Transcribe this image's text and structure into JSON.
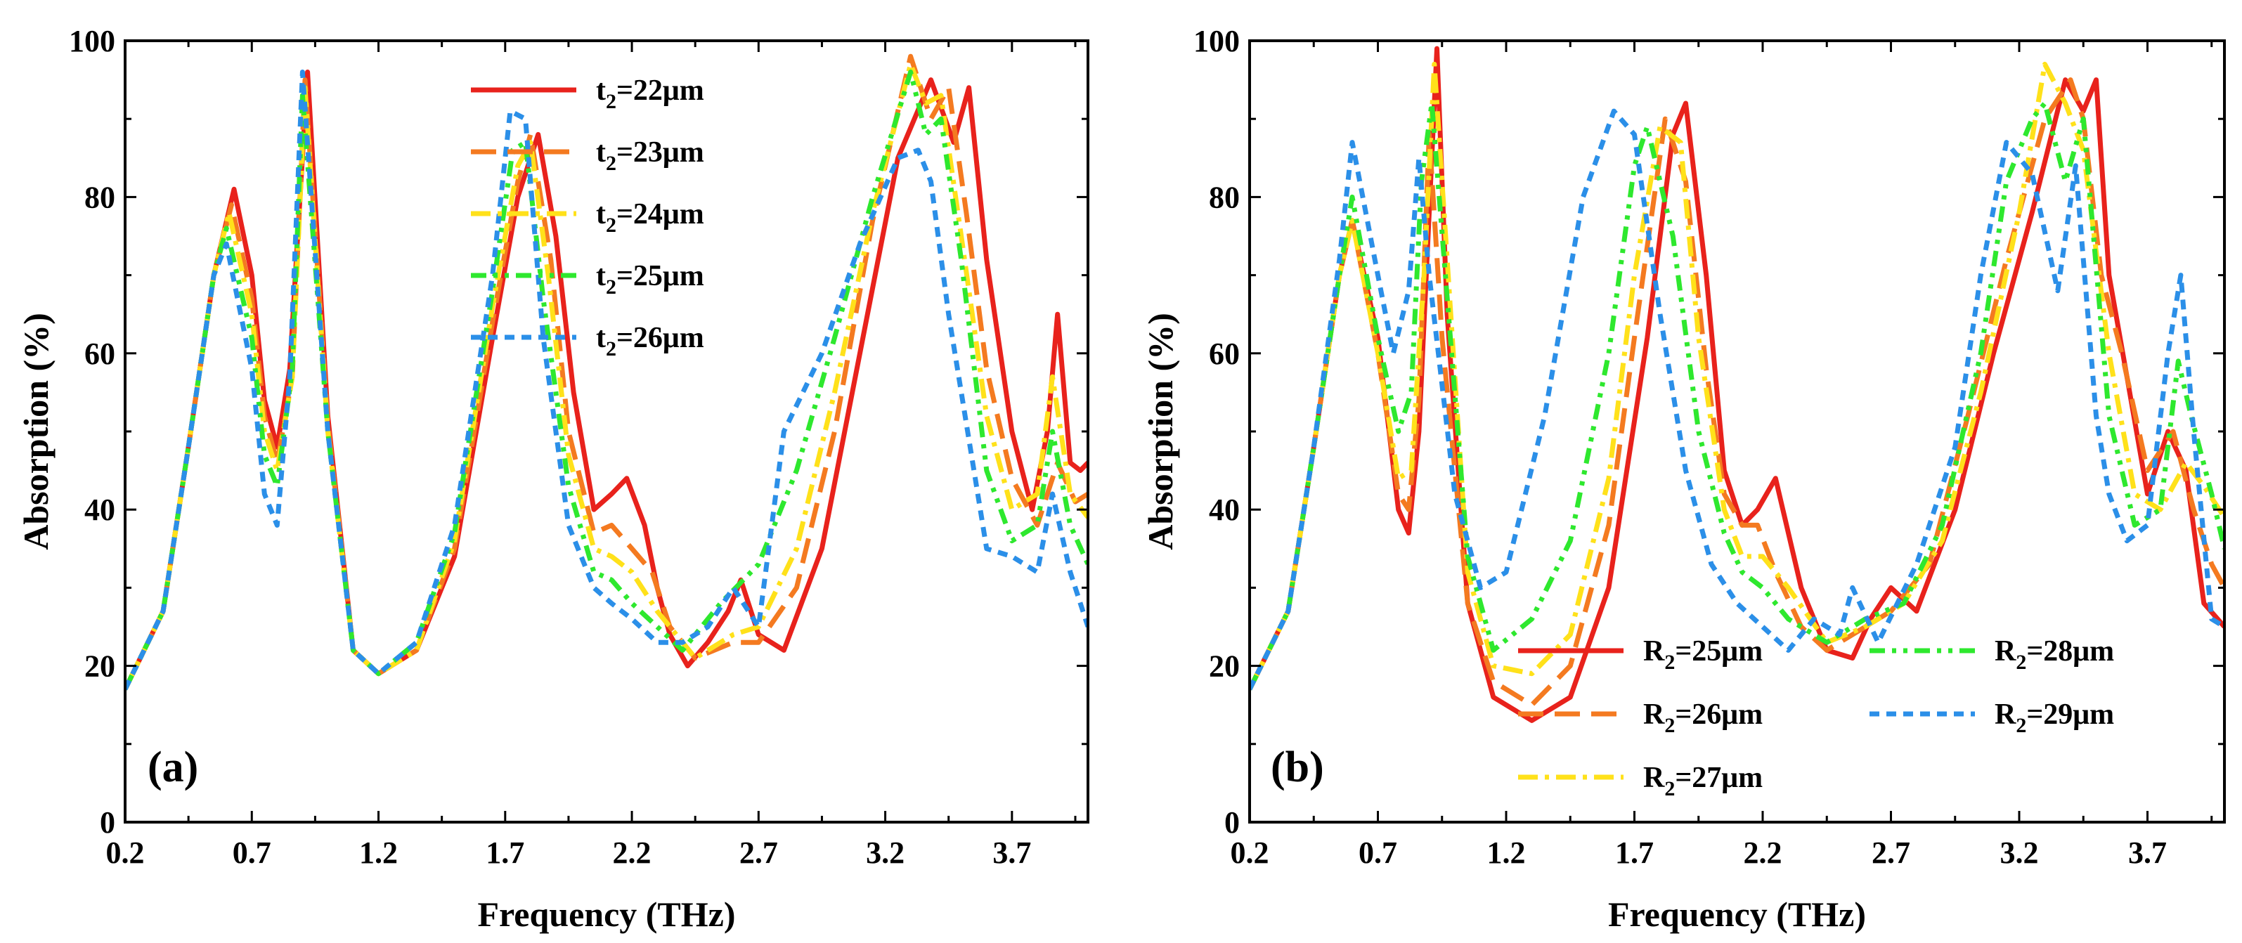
{
  "chart_data": [
    {
      "type": "line",
      "panel_label": "(a)",
      "xlabel": "Frequency (THz)",
      "ylabel": "Absorption (%)",
      "xlim": [
        0.2,
        4.0
      ],
      "ylim": [
        0,
        100
      ],
      "xticks": [
        "0.2",
        "0.7",
        "1.2",
        "1.7",
        "2.2",
        "2.7",
        "3.2",
        "3.7"
      ],
      "yticks": [
        "0",
        "20",
        "40",
        "60",
        "80",
        "100"
      ],
      "legend_position": "top-right",
      "series": [
        {
          "name": "t2=22μm",
          "label_main": "t",
          "label_sub": "2",
          "label_rest": "=22μm",
          "color": "#e8221c",
          "dash": "solid",
          "x": [
            0.2,
            0.35,
            0.45,
            0.55,
            0.63,
            0.7,
            0.75,
            0.8,
            0.85,
            0.92,
            1.0,
            1.1,
            1.2,
            1.35,
            1.5,
            1.65,
            1.75,
            1.83,
            1.9,
            1.97,
            2.05,
            2.12,
            2.18,
            2.25,
            2.3,
            2.35,
            2.42,
            2.5,
            2.58,
            2.63,
            2.7,
            2.8,
            2.95,
            3.1,
            3.25,
            3.38,
            3.47,
            3.53,
            3.6,
            3.7,
            3.78,
            3.84,
            3.88,
            3.93,
            3.97,
            4.0
          ],
          "y": [
            17,
            27,
            48,
            70,
            81,
            70,
            54,
            48,
            58,
            96,
            52,
            22,
            19,
            22,
            34,
            62,
            80,
            88,
            75,
            55,
            40,
            42,
            44,
            38,
            30,
            24,
            20,
            23,
            27,
            31,
            24,
            22,
            35,
            60,
            85,
            95,
            87,
            94,
            72,
            50,
            40,
            50,
            65,
            46,
            45,
            46
          ]
        },
        {
          "name": "t2=23μm",
          "label_main": "t",
          "label_sub": "2",
          "label_rest": "=23μm",
          "color": "#f47a20",
          "dash": "36 16",
          "x": [
            0.2,
            0.35,
            0.45,
            0.55,
            0.62,
            0.7,
            0.75,
            0.8,
            0.86,
            0.91,
            1.0,
            1.1,
            1.2,
            1.35,
            1.5,
            1.65,
            1.75,
            1.8,
            1.88,
            1.95,
            2.05,
            2.12,
            2.2,
            2.28,
            2.35,
            2.45,
            2.6,
            2.7,
            2.85,
            3.0,
            3.15,
            3.3,
            3.38,
            3.45,
            3.52,
            3.6,
            3.7,
            3.8,
            3.88,
            3.95,
            4.0
          ],
          "y": [
            17,
            27,
            48,
            70,
            79,
            67,
            52,
            46,
            57,
            95,
            51,
            22,
            19,
            22,
            35,
            64,
            82,
            88,
            72,
            50,
            37,
            38,
            35,
            32,
            25,
            21,
            23,
            23,
            30,
            50,
            77,
            98,
            90,
            94,
            78,
            58,
            44,
            38,
            46,
            41,
            42
          ]
        },
        {
          "name": "t2=24μm",
          "label_main": "t",
          "label_sub": "2",
          "label_rest": "=24μm",
          "color": "#ffe11a",
          "dash": "28 10 6 10",
          "x": [
            0.2,
            0.35,
            0.45,
            0.55,
            0.61,
            0.7,
            0.75,
            0.8,
            0.86,
            0.91,
            1.0,
            1.1,
            1.2,
            1.35,
            1.5,
            1.65,
            1.75,
            1.8,
            1.87,
            1.95,
            2.05,
            2.12,
            2.2,
            2.3,
            2.45,
            2.6,
            2.7,
            2.85,
            3.0,
            3.15,
            3.3,
            3.36,
            3.42,
            3.5,
            3.6,
            3.7,
            3.8,
            3.86,
            3.93,
            4.0
          ],
          "y": [
            17,
            27,
            48,
            70,
            78,
            65,
            50,
            45,
            57,
            94,
            50,
            22,
            19,
            22,
            36,
            66,
            84,
            87,
            70,
            47,
            35,
            34,
            32,
            27,
            21,
            24,
            25,
            35,
            55,
            78,
            97,
            92,
            93,
            75,
            52,
            40,
            42,
            57,
            42,
            39
          ]
        },
        {
          "name": "t2=25μm",
          "label_main": "t",
          "label_sub": "2",
          "label_rest": "=25μm",
          "color": "#2ee82e",
          "dash": "22 10 6 10 6 10",
          "x": [
            0.2,
            0.35,
            0.45,
            0.55,
            0.6,
            0.7,
            0.75,
            0.8,
            0.86,
            0.9,
            1.0,
            1.1,
            1.2,
            1.35,
            1.5,
            1.65,
            1.73,
            1.78,
            1.85,
            1.95,
            2.05,
            2.12,
            2.2,
            2.3,
            2.4,
            2.55,
            2.7,
            2.85,
            3.0,
            3.15,
            3.3,
            3.36,
            3.42,
            3.5,
            3.6,
            3.7,
            3.8,
            3.86,
            3.93,
            4.0
          ],
          "y": [
            17,
            27,
            48,
            70,
            76,
            62,
            47,
            43,
            58,
            93,
            50,
            22,
            19,
            23,
            37,
            68,
            86,
            87,
            67,
            43,
            32,
            31,
            28,
            25,
            22,
            28,
            33,
            45,
            62,
            80,
            96,
            88,
            90,
            72,
            45,
            36,
            38,
            50,
            38,
            33
          ]
        },
        {
          "name": "t2=26μm",
          "label_main": "t",
          "label_sub": "2",
          "label_rest": "=26μm",
          "color": "#2b8fe8",
          "dash": "14 10",
          "x": [
            0.2,
            0.35,
            0.45,
            0.55,
            0.6,
            0.7,
            0.75,
            0.8,
            0.85,
            0.9,
            1.0,
            1.1,
            1.2,
            1.35,
            1.5,
            1.65,
            1.72,
            1.78,
            1.85,
            1.95,
            2.05,
            2.12,
            2.2,
            2.3,
            2.4,
            2.5,
            2.6,
            2.7,
            2.8,
            2.95,
            3.1,
            3.25,
            3.33,
            3.38,
            3.45,
            3.55,
            3.6,
            3.7,
            3.8,
            3.86,
            3.93,
            4.0
          ],
          "y": [
            17,
            27,
            48,
            70,
            74,
            58,
            42,
            38,
            57,
            96,
            50,
            22,
            19,
            23,
            38,
            70,
            91,
            90,
            62,
            38,
            30,
            28,
            26,
            23,
            23,
            25,
            30,
            25,
            50,
            60,
            74,
            85,
            86,
            82,
            65,
            45,
            35,
            34,
            32,
            42,
            32,
            25
          ]
        }
      ]
    },
    {
      "type": "line",
      "panel_label": "(b)",
      "xlabel": "Frequency (THz)",
      "ylabel": "Absorption (%)",
      "xlim": [
        0.2,
        4.0
      ],
      "ylim": [
        0,
        100
      ],
      "xticks": [
        "0.2",
        "0.7",
        "1.2",
        "1.7",
        "2.2",
        "2.7",
        "3.2",
        "3.7"
      ],
      "yticks": [
        "0",
        "20",
        "40",
        "60",
        "80",
        "100"
      ],
      "legend_position": "bottom-right",
      "series": [
        {
          "name": "R2=25μm",
          "label_main": "R",
          "label_sub": "2",
          "label_rest": "=25μm",
          "color": "#e8221c",
          "dash": "solid",
          "x": [
            0.2,
            0.35,
            0.45,
            0.55,
            0.6,
            0.7,
            0.78,
            0.82,
            0.86,
            0.9,
            0.93,
            0.97,
            1.05,
            1.15,
            1.3,
            1.45,
            1.6,
            1.75,
            1.85,
            1.9,
            1.98,
            2.05,
            2.12,
            2.18,
            2.25,
            2.35,
            2.45,
            2.55,
            2.62,
            2.7,
            2.8,
            2.95,
            3.1,
            3.25,
            3.38,
            3.45,
            3.5,
            3.55,
            3.62,
            3.7,
            3.78,
            3.85,
            3.92,
            4.0
          ],
          "y": [
            17,
            27,
            48,
            70,
            77,
            62,
            40,
            37,
            50,
            78,
            99,
            65,
            28,
            16,
            13,
            16,
            30,
            62,
            88,
            92,
            70,
            45,
            38,
            40,
            44,
            30,
            22,
            21,
            26,
            30,
            27,
            40,
            60,
            78,
            95,
            91,
            95,
            70,
            57,
            42,
            50,
            45,
            28,
            25
          ]
        },
        {
          "name": "R2=26μm",
          "label_main": "R",
          "label_sub": "2",
          "label_rest": "=26μm",
          "color": "#f47a20",
          "dash": "36 16",
          "x": [
            0.2,
            0.35,
            0.45,
            0.55,
            0.6,
            0.7,
            0.78,
            0.82,
            0.86,
            0.9,
            0.95,
            1.05,
            1.15,
            1.3,
            1.45,
            1.6,
            1.7,
            1.82,
            1.9,
            1.98,
            2.05,
            2.12,
            2.18,
            2.25,
            2.35,
            2.45,
            2.55,
            2.7,
            2.85,
            3.0,
            3.15,
            3.3,
            3.4,
            3.45,
            3.52,
            3.6,
            3.7,
            3.8,
            3.88,
            3.95,
            4.0
          ],
          "y": [
            17,
            27,
            48,
            70,
            77,
            60,
            42,
            40,
            54,
            88,
            62,
            28,
            18,
            15,
            20,
            38,
            62,
            90,
            82,
            58,
            42,
            38,
            38,
            32,
            25,
            22,
            24,
            27,
            33,
            52,
            72,
            90,
            95,
            90,
            70,
            60,
            45,
            50,
            40,
            33,
            30
          ]
        },
        {
          "name": "R2=27μm",
          "label_main": "R",
          "label_sub": "2",
          "label_rest": "=27μm",
          "color": "#ffe11a",
          "dash": "28 10 6 10",
          "x": [
            0.2,
            0.35,
            0.45,
            0.55,
            0.6,
            0.7,
            0.78,
            0.83,
            0.88,
            0.92,
            1.05,
            1.15,
            1.3,
            1.45,
            1.6,
            1.7,
            1.8,
            1.88,
            1.95,
            2.05,
            2.12,
            2.2,
            2.3,
            2.45,
            2.6,
            2.75,
            2.9,
            3.05,
            3.2,
            3.3,
            3.38,
            3.45,
            3.55,
            3.65,
            3.75,
            3.85,
            3.92,
            4.0
          ],
          "y": [
            17,
            27,
            48,
            70,
            77,
            60,
            44,
            45,
            70,
            97,
            32,
            20,
            19,
            24,
            44,
            70,
            89,
            87,
            62,
            40,
            34,
            34,
            30,
            23,
            25,
            28,
            36,
            55,
            78,
            97,
            92,
            86,
            60,
            42,
            40,
            46,
            43,
            39
          ]
        },
        {
          "name": "R2=28μm",
          "label_main": "R",
          "label_sub": "2",
          "label_rest": "=28μm",
          "color": "#2ee82e",
          "dash": "22 10 6 10 6 10",
          "x": [
            0.2,
            0.35,
            0.45,
            0.55,
            0.6,
            0.7,
            0.78,
            0.83,
            0.87,
            0.91,
            1.05,
            1.15,
            1.3,
            1.45,
            1.6,
            1.7,
            1.75,
            1.85,
            1.95,
            2.05,
            2.12,
            2.2,
            2.3,
            2.45,
            2.6,
            2.75,
            2.9,
            3.05,
            3.15,
            3.25,
            3.3,
            3.38,
            3.45,
            3.55,
            3.65,
            3.75,
            3.82,
            3.87,
            3.95,
            4.0
          ],
          "y": [
            17,
            27,
            48,
            70,
            80,
            62,
            50,
            55,
            82,
            92,
            34,
            22,
            26,
            36,
            60,
            84,
            89,
            75,
            50,
            37,
            32,
            30,
            26,
            23,
            26,
            28,
            38,
            60,
            82,
            90,
            92,
            82,
            90,
            52,
            38,
            40,
            59,
            52,
            42,
            35
          ]
        },
        {
          "name": "R2=29μm",
          "label_main": "R",
          "label_sub": "2",
          "label_rest": "=29μm",
          "color": "#2b8fe8",
          "dash": "14 10",
          "x": [
            0.2,
            0.35,
            0.45,
            0.55,
            0.6,
            0.7,
            0.76,
            0.82,
            0.86,
            0.9,
            1.0,
            1.1,
            1.2,
            1.35,
            1.5,
            1.62,
            1.7,
            1.8,
            1.9,
            2.0,
            2.1,
            2.2,
            2.3,
            2.4,
            2.5,
            2.55,
            2.65,
            2.8,
            2.95,
            3.05,
            3.15,
            3.25,
            3.35,
            3.42,
            3.5,
            3.55,
            3.62,
            3.7,
            3.78,
            3.83,
            3.88,
            3.95,
            4.0
          ],
          "y": [
            17,
            27,
            48,
            72,
            87,
            70,
            60,
            68,
            85,
            70,
            42,
            30,
            32,
            52,
            80,
            91,
            88,
            65,
            45,
            33,
            28,
            25,
            22,
            26,
            24,
            30,
            23,
            33,
            48,
            70,
            87,
            83,
            68,
            84,
            52,
            42,
            36,
            38,
            60,
            70,
            50,
            26,
            25
          ]
        }
      ]
    }
  ]
}
